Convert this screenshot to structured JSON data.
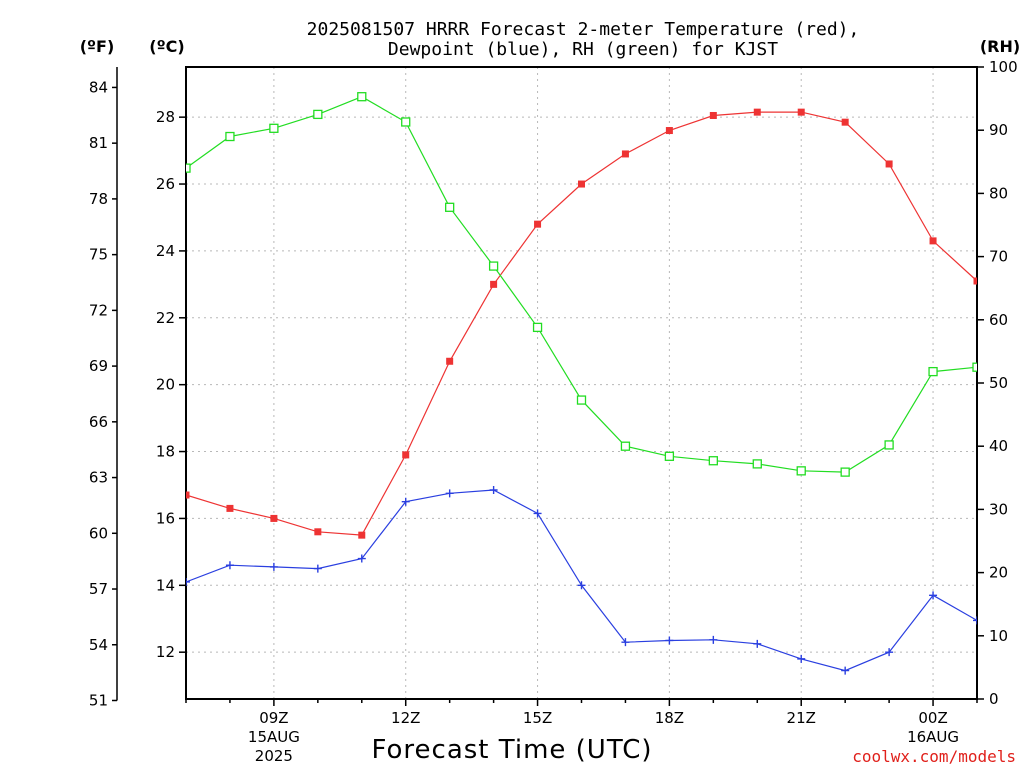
{
  "title": {
    "line1": "2025081507 HRRR Forecast 2-meter Temperature (red),",
    "line2": "Dewpoint (blue), RH (green) for KJST"
  },
  "axis_units": {
    "fahrenheit": "(ºF)",
    "celsius": "(ºC)",
    "rh": "(RH)"
  },
  "xlabel": "Forecast Time (UTC)",
  "credit": "coolwx.com/models",
  "colors": {
    "temperature": "#ee3333",
    "dewpoint": "#2a3fe0",
    "rh": "#22dd22",
    "credit": "#e0201b"
  },
  "chart_data": {
    "type": "line",
    "x_hours_utc": [
      "07Z",
      "08Z",
      "09Z",
      "10Z",
      "11Z",
      "12Z",
      "13Z",
      "14Z",
      "15Z",
      "16Z",
      "17Z",
      "18Z",
      "19Z",
      "20Z",
      "21Z",
      "22Z",
      "23Z",
      "00Z",
      "01Z"
    ],
    "x_tick_labels": [
      {
        "hour": "09Z",
        "lines": [
          "09Z",
          "15AUG",
          "2025"
        ]
      },
      {
        "hour": "12Z",
        "lines": [
          "12Z"
        ]
      },
      {
        "hour": "15Z",
        "lines": [
          "15Z"
        ]
      },
      {
        "hour": "18Z",
        "lines": [
          "18Z"
        ]
      },
      {
        "hour": "21Z",
        "lines": [
          "21Z"
        ]
      },
      {
        "hour": "00Z",
        "lines": [
          "00Z",
          "16AUG"
        ]
      }
    ],
    "celsius_axis": {
      "range": [
        10.6,
        29.5
      ],
      "ticks": [
        12,
        14,
        16,
        18,
        20,
        22,
        24,
        26,
        28
      ]
    },
    "fahrenheit_axis": {
      "range": [
        51.08,
        85.1
      ],
      "ticks": [
        51,
        54,
        57,
        60,
        63,
        66,
        69,
        72,
        75,
        78,
        81,
        84
      ]
    },
    "rh_axis": {
      "range": [
        0,
        100
      ],
      "ticks": [
        0,
        10,
        20,
        30,
        40,
        50,
        60,
        70,
        80,
        90,
        100
      ]
    },
    "grid": true,
    "series": [
      {
        "name": "Temperature",
        "units": "celsius",
        "marker": "filled-square",
        "values": [
          16.7,
          16.3,
          16.0,
          15.6,
          15.5,
          17.9,
          20.7,
          23.0,
          24.8,
          26.0,
          26.9,
          27.6,
          28.05,
          28.15,
          28.15,
          27.85,
          26.6,
          24.3,
          23.1
        ]
      },
      {
        "name": "Dewpoint",
        "units": "celsius",
        "marker": "plus",
        "values": [
          14.1,
          14.6,
          14.55,
          14.5,
          14.8,
          16.5,
          16.75,
          16.85,
          16.15,
          14.0,
          12.3,
          12.35,
          12.37,
          12.25,
          11.8,
          11.45,
          12.0,
          13.7,
          12.95
        ]
      },
      {
        "name": "RH",
        "units": "percent",
        "marker": "open-square",
        "values": [
          84.0,
          89.0,
          90.3,
          92.5,
          95.3,
          91.3,
          77.8,
          68.5,
          58.8,
          47.3,
          40.0,
          38.4,
          37.7,
          37.2,
          36.1,
          35.9,
          40.2,
          51.8,
          52.5
        ]
      }
    ]
  }
}
